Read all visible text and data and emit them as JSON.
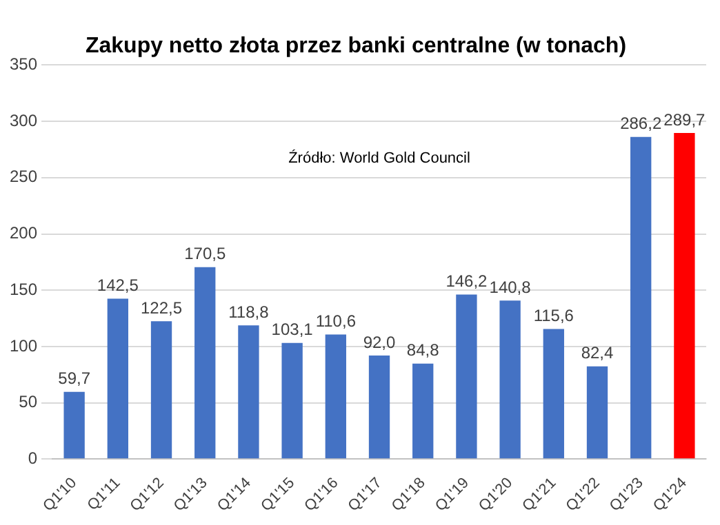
{
  "chart_data": {
    "type": "bar",
    "title": "Zakupy netto złota przez banki centralne (w tonach)",
    "annotations": [
      "Źródło: World Gold Council"
    ],
    "categories": [
      "Q1'10",
      "Q1'11",
      "Q1'12",
      "Q1'13",
      "Q1'14",
      "Q1'15",
      "Q1'16",
      "Q1'17",
      "Q1'18",
      "Q1'19",
      "Q1'20",
      "Q1'21",
      "Q1'22",
      "Q1'23",
      "Q1'24"
    ],
    "values": [
      59.7,
      142.5,
      122.5,
      170.5,
      118.8,
      103.1,
      110.6,
      92.0,
      84.8,
      146.2,
      140.8,
      115.6,
      82.4,
      286.2,
      289.7
    ],
    "colors": [
      "#4472c4",
      "#4472c4",
      "#4472c4",
      "#4472c4",
      "#4472c4",
      "#4472c4",
      "#4472c4",
      "#4472c4",
      "#4472c4",
      "#4472c4",
      "#4472c4",
      "#4472c4",
      "#4472c4",
      "#4472c4",
      "#ff0000"
    ],
    "value_labels": [
      "59,7",
      "142,5",
      "122,5",
      "170,5",
      "118,8",
      "103,1",
      "110,6",
      "92,0",
      "84,8",
      "146,2",
      "140,8",
      "115,6",
      "82,4",
      "286,2",
      "289,7"
    ],
    "ylim": [
      0,
      350
    ],
    "yticks": [
      0,
      50,
      100,
      150,
      200,
      250,
      300,
      350
    ],
    "grid": "y",
    "legend": false
  }
}
